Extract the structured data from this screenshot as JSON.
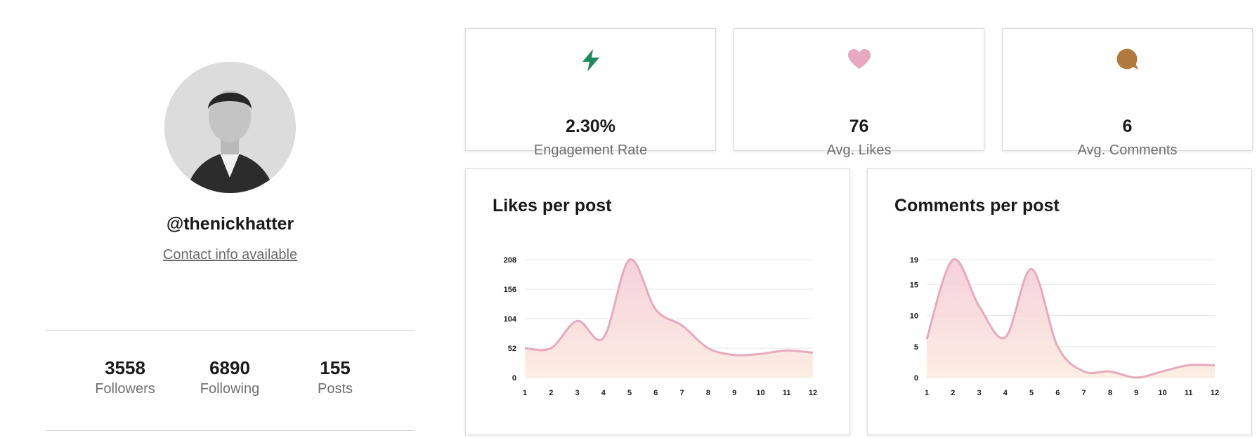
{
  "profile": {
    "handle": "@thenickhatter",
    "contact_link": "Contact info available",
    "stats": [
      {
        "value": "3558",
        "label": "Followers"
      },
      {
        "value": "6890",
        "label": "Following"
      },
      {
        "value": "155",
        "label": "Posts"
      }
    ]
  },
  "metrics": [
    {
      "value": "2.30%",
      "label": "Engagement Rate",
      "icon": "lightning-icon",
      "color": "#1f8a5b"
    },
    {
      "value": "76",
      "label": "Avg. Likes",
      "icon": "heart-icon",
      "color": "#e8a8c0"
    },
    {
      "value": "6",
      "label": "Avg. Comments",
      "icon": "comment-bubble-icon",
      "color": "#b07a3e"
    }
  ],
  "charts": {
    "likes_title": "Likes per post",
    "comments_title": "Comments per post"
  },
  "chart_data": [
    {
      "type": "area",
      "title": "Likes per post",
      "x": [
        1,
        2,
        3,
        4,
        5,
        6,
        7,
        8,
        9,
        10,
        11,
        12
      ],
      "y_ticks": [
        0,
        52,
        104,
        156,
        208
      ],
      "ylim": [
        0,
        208
      ],
      "series": [
        {
          "values": [
            52,
            52,
            100,
            70,
            208,
            120,
            92,
            52,
            40,
            42,
            48,
            44
          ]
        }
      ],
      "line_color": "#e8a9bd",
      "grid": true
    },
    {
      "type": "area",
      "title": "Comments per post",
      "x": [
        1,
        2,
        3,
        4,
        5,
        6,
        7,
        8,
        9,
        10,
        11,
        12
      ],
      "y_ticks": [
        0,
        5,
        10,
        15,
        19
      ],
      "ylim": [
        0,
        19
      ],
      "series": [
        {
          "values": [
            6.2,
            19,
            11.5,
            6.5,
            17.5,
            5,
            1,
            1,
            0,
            1,
            2,
            2
          ]
        }
      ],
      "line_color": "#e8a9bd",
      "grid": true
    }
  ]
}
